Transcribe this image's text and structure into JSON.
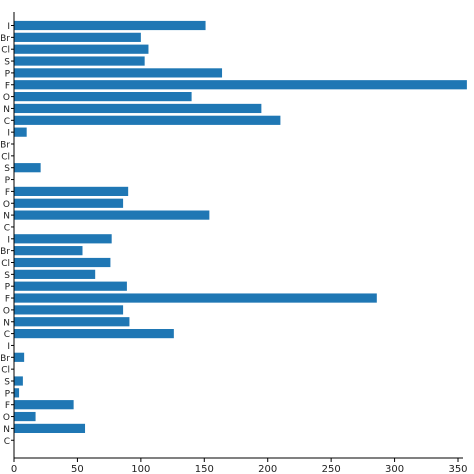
{
  "chart_data": {
    "type": "bar",
    "orientation": "horizontal",
    "title": "",
    "xlabel": "",
    "ylabel": "",
    "xlim": [
      0,
      360
    ],
    "xticks": [
      0,
      50,
      100,
      150,
      200,
      250,
      300,
      350
    ],
    "grid": false,
    "bar_color": "#1f77b4",
    "categories": [
      "I",
      "Br",
      "Cl",
      "S",
      "P",
      "F",
      "O",
      "N",
      "C",
      "I",
      "Br",
      "Cl",
      "S",
      "P",
      "F",
      "O",
      "N",
      "C",
      "I",
      "Br",
      "Cl",
      "S",
      "P",
      "F",
      "O",
      "N",
      "C",
      "I",
      "Br",
      "Cl",
      "S",
      "P",
      "F",
      "O",
      "N",
      "C"
    ],
    "values": [
      151,
      100,
      106,
      103,
      164,
      357,
      140,
      195,
      210,
      10,
      0,
      0,
      21,
      0,
      90,
      86,
      154,
      0,
      77,
      54,
      76,
      64,
      89,
      286,
      86,
      91,
      126,
      0,
      8,
      0,
      7,
      4,
      47,
      17,
      56,
      0
    ]
  }
}
